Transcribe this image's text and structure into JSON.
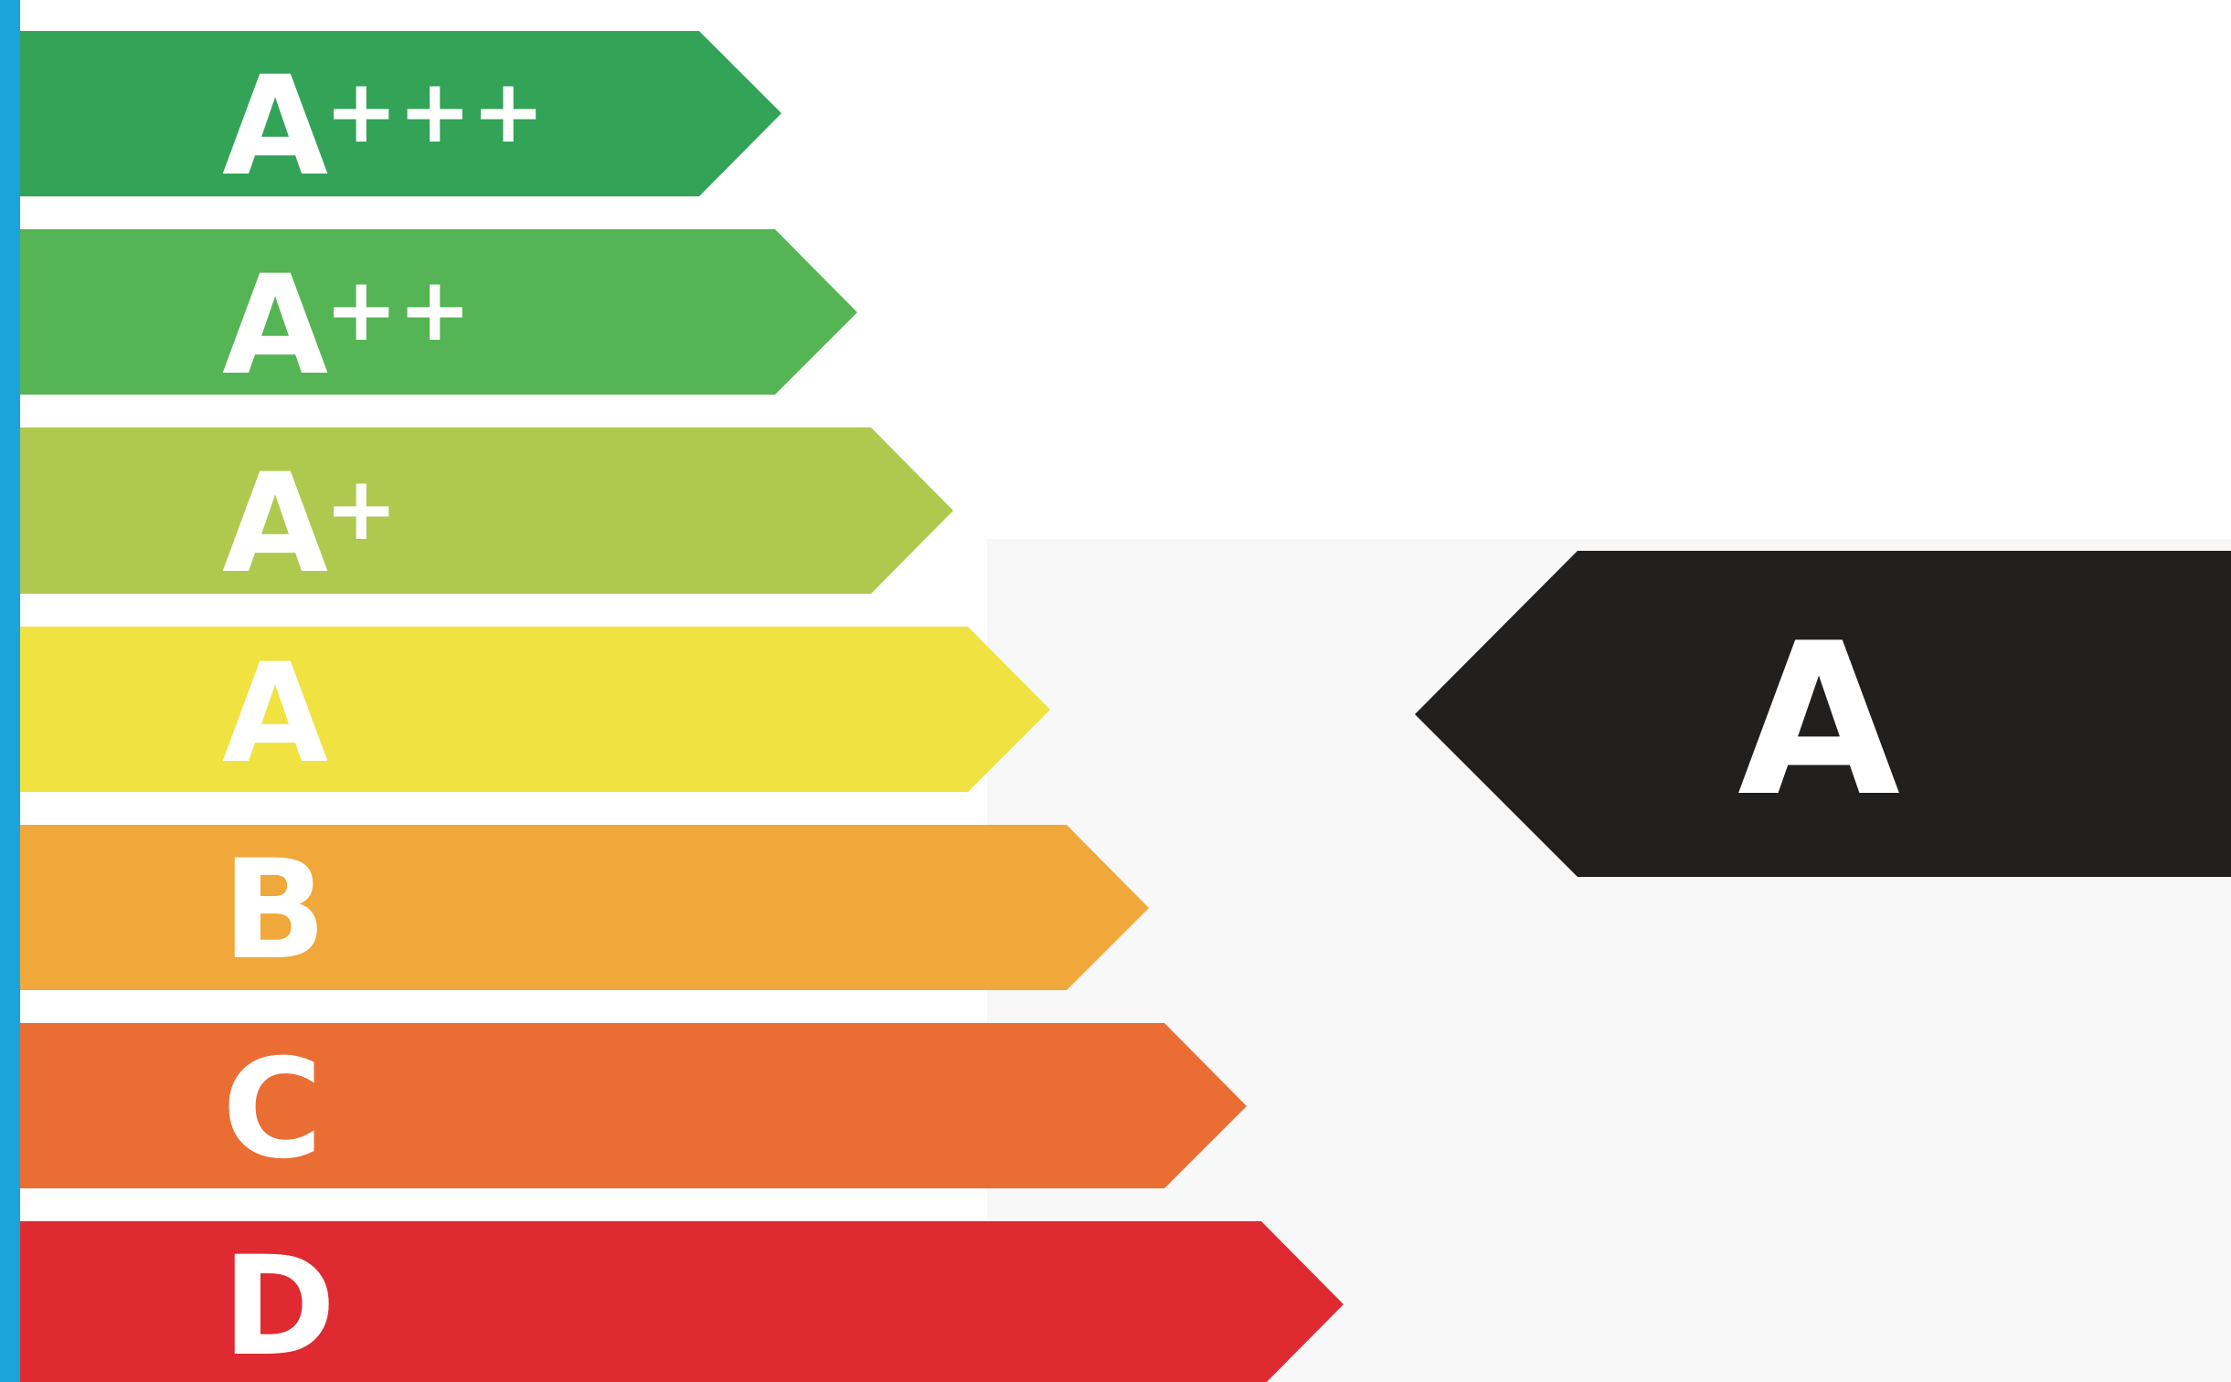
{
  "energy_label": {
    "accent_bar_color": "#1ba3dc",
    "classes": [
      {
        "letter": "A",
        "plus": "+++",
        "color": "#33a357"
      },
      {
        "letter": "A",
        "plus": "++",
        "color": "#55b555"
      },
      {
        "letter": "A",
        "plus": "+",
        "color": "#aec94e"
      },
      {
        "letter": "A",
        "plus": "",
        "color": "#efe241"
      },
      {
        "letter": "B",
        "plus": "",
        "color": "#f0a83a"
      },
      {
        "letter": "C",
        "plus": "",
        "color": "#ea6e33"
      },
      {
        "letter": "D",
        "plus": "",
        "color": "#e02a31"
      }
    ],
    "rating": {
      "letter": "A",
      "color": "#221f1f"
    }
  }
}
